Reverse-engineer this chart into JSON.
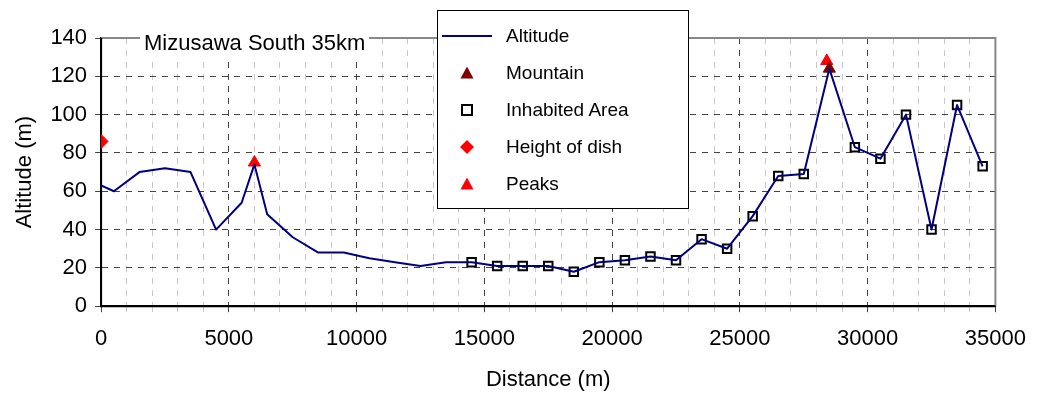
{
  "chart_data": {
    "type": "line",
    "title": "Mizusawa South 35km",
    "xlabel": "Distance (m)",
    "ylabel": "Altitude (m)",
    "xlim": [
      0,
      35000
    ],
    "ylim": [
      0,
      140
    ],
    "xticks": [
      0,
      {
        "value": 1000,
        "label": null
      },
      {
        "value": 2000,
        "label": null
      },
      {
        "value": 3000,
        "label": null
      },
      {
        "value": 4000,
        "label": null
      },
      5000,
      {
        "value": 6000,
        "label": null
      },
      {
        "value": 7000,
        "label": null
      },
      {
        "value": 8000,
        "label": null
      },
      {
        "value": 9000,
        "label": null
      },
      10000,
      {
        "value": 11000,
        "label": null
      },
      {
        "value": 12000,
        "label": null
      },
      {
        "value": 13000,
        "label": null
      },
      {
        "value": 14000,
        "label": null
      },
      15000,
      {
        "value": 16000,
        "label": null
      },
      {
        "value": 17000,
        "label": null
      },
      {
        "value": 18000,
        "label": null
      },
      {
        "value": 19000,
        "label": null
      },
      20000,
      {
        "value": 21000,
        "label": null
      },
      {
        "value": 22000,
        "label": null
      },
      {
        "value": 23000,
        "label": null
      },
      {
        "value": 24000,
        "label": null
      },
      25000,
      {
        "value": 26000,
        "label": null
      },
      {
        "value": 27000,
        "label": null
      },
      {
        "value": 28000,
        "label": null
      },
      {
        "value": 29000,
        "label": null
      },
      30000,
      {
        "value": 31000,
        "label": null
      },
      {
        "value": 32000,
        "label": null
      },
      {
        "value": 33000,
        "label": null
      },
      {
        "value": 34000,
        "label": null
      },
      35000
    ],
    "yticks": [
      0,
      20,
      40,
      60,
      80,
      100,
      120,
      140
    ],
    "grid": true,
    "legend": "top",
    "series": [
      {
        "name": "Altitude",
        "color": "#000080",
        "marker": "none",
        "x": [
          0,
          500,
          1500,
          2500,
          3500,
          4500,
          5500,
          6000,
          6500,
          7500,
          8500,
          9500,
          10500,
          11500,
          12500,
          13500,
          14500,
          15500,
          16500,
          17500,
          18500,
          19500,
          20500,
          21500,
          22500,
          23500,
          24500,
          25500,
          26500,
          27500,
          28500,
          29500,
          30500,
          31500,
          32500,
          33500,
          34500
        ],
        "values": [
          63,
          60,
          70,
          72,
          70,
          40,
          54,
          74,
          48,
          36,
          28,
          28,
          25,
          23,
          21,
          23,
          23,
          21,
          21,
          21,
          18,
          23,
          24,
          26,
          24,
          35,
          30,
          47,
          68,
          69,
          124,
          83,
          77,
          100,
          40,
          105,
          73
        ]
      },
      {
        "name": "Mountain",
        "type": "scatter",
        "color": "#800000",
        "marker": "triangle",
        "x": [
          28500
        ],
        "values": [
          124
        ]
      },
      {
        "name": "Inhabited Area",
        "type": "scatter",
        "color": "#000000",
        "marker": "square",
        "x": [
          14500,
          15500,
          16500,
          17500,
          18500,
          19500,
          20500,
          21500,
          22500,
          23500,
          24500,
          25500,
          26500,
          27500,
          29500,
          30500,
          31500,
          32500,
          33500,
          34500
        ],
        "values": [
          23,
          21,
          21,
          21,
          18,
          23,
          24,
          26,
          24,
          35,
          30,
          47,
          68,
          69,
          83,
          77,
          100,
          40,
          105,
          73
        ]
      },
      {
        "name": "Height of dish",
        "type": "scatter",
        "color": "#ff0000",
        "marker": "diamond",
        "x": [
          0
        ],
        "values": [
          86
        ]
      },
      {
        "name": "Peaks",
        "type": "scatter",
        "color": "#ff0000",
        "marker": "triangle",
        "x": [
          6000,
          28400
        ],
        "values": [
          75,
          128
        ]
      }
    ]
  }
}
